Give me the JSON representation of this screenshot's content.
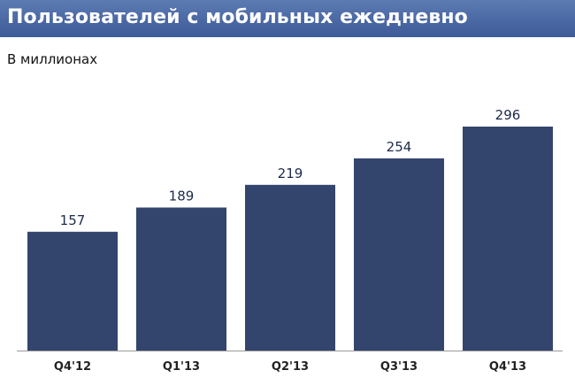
{
  "header": {
    "title": "Пользователей с мобильных ежедневно"
  },
  "colors": {
    "title_bar": "#4a68a3",
    "bar_fill": "#33456d",
    "axis": "#9a9a9a"
  },
  "chart_data": {
    "type": "bar",
    "title": "Пользователей с мобильных ежедневно",
    "subtitle": "В миллионах",
    "categories": [
      "Q4'12",
      "Q1'13",
      "Q2'13",
      "Q3'13",
      "Q4'13"
    ],
    "values": [
      157,
      189,
      219,
      254,
      296
    ],
    "data_labels": [
      "157",
      "189",
      "219",
      "254",
      "296"
    ],
    "ylim": [
      0,
      296
    ],
    "grid": false,
    "legend": "none"
  }
}
